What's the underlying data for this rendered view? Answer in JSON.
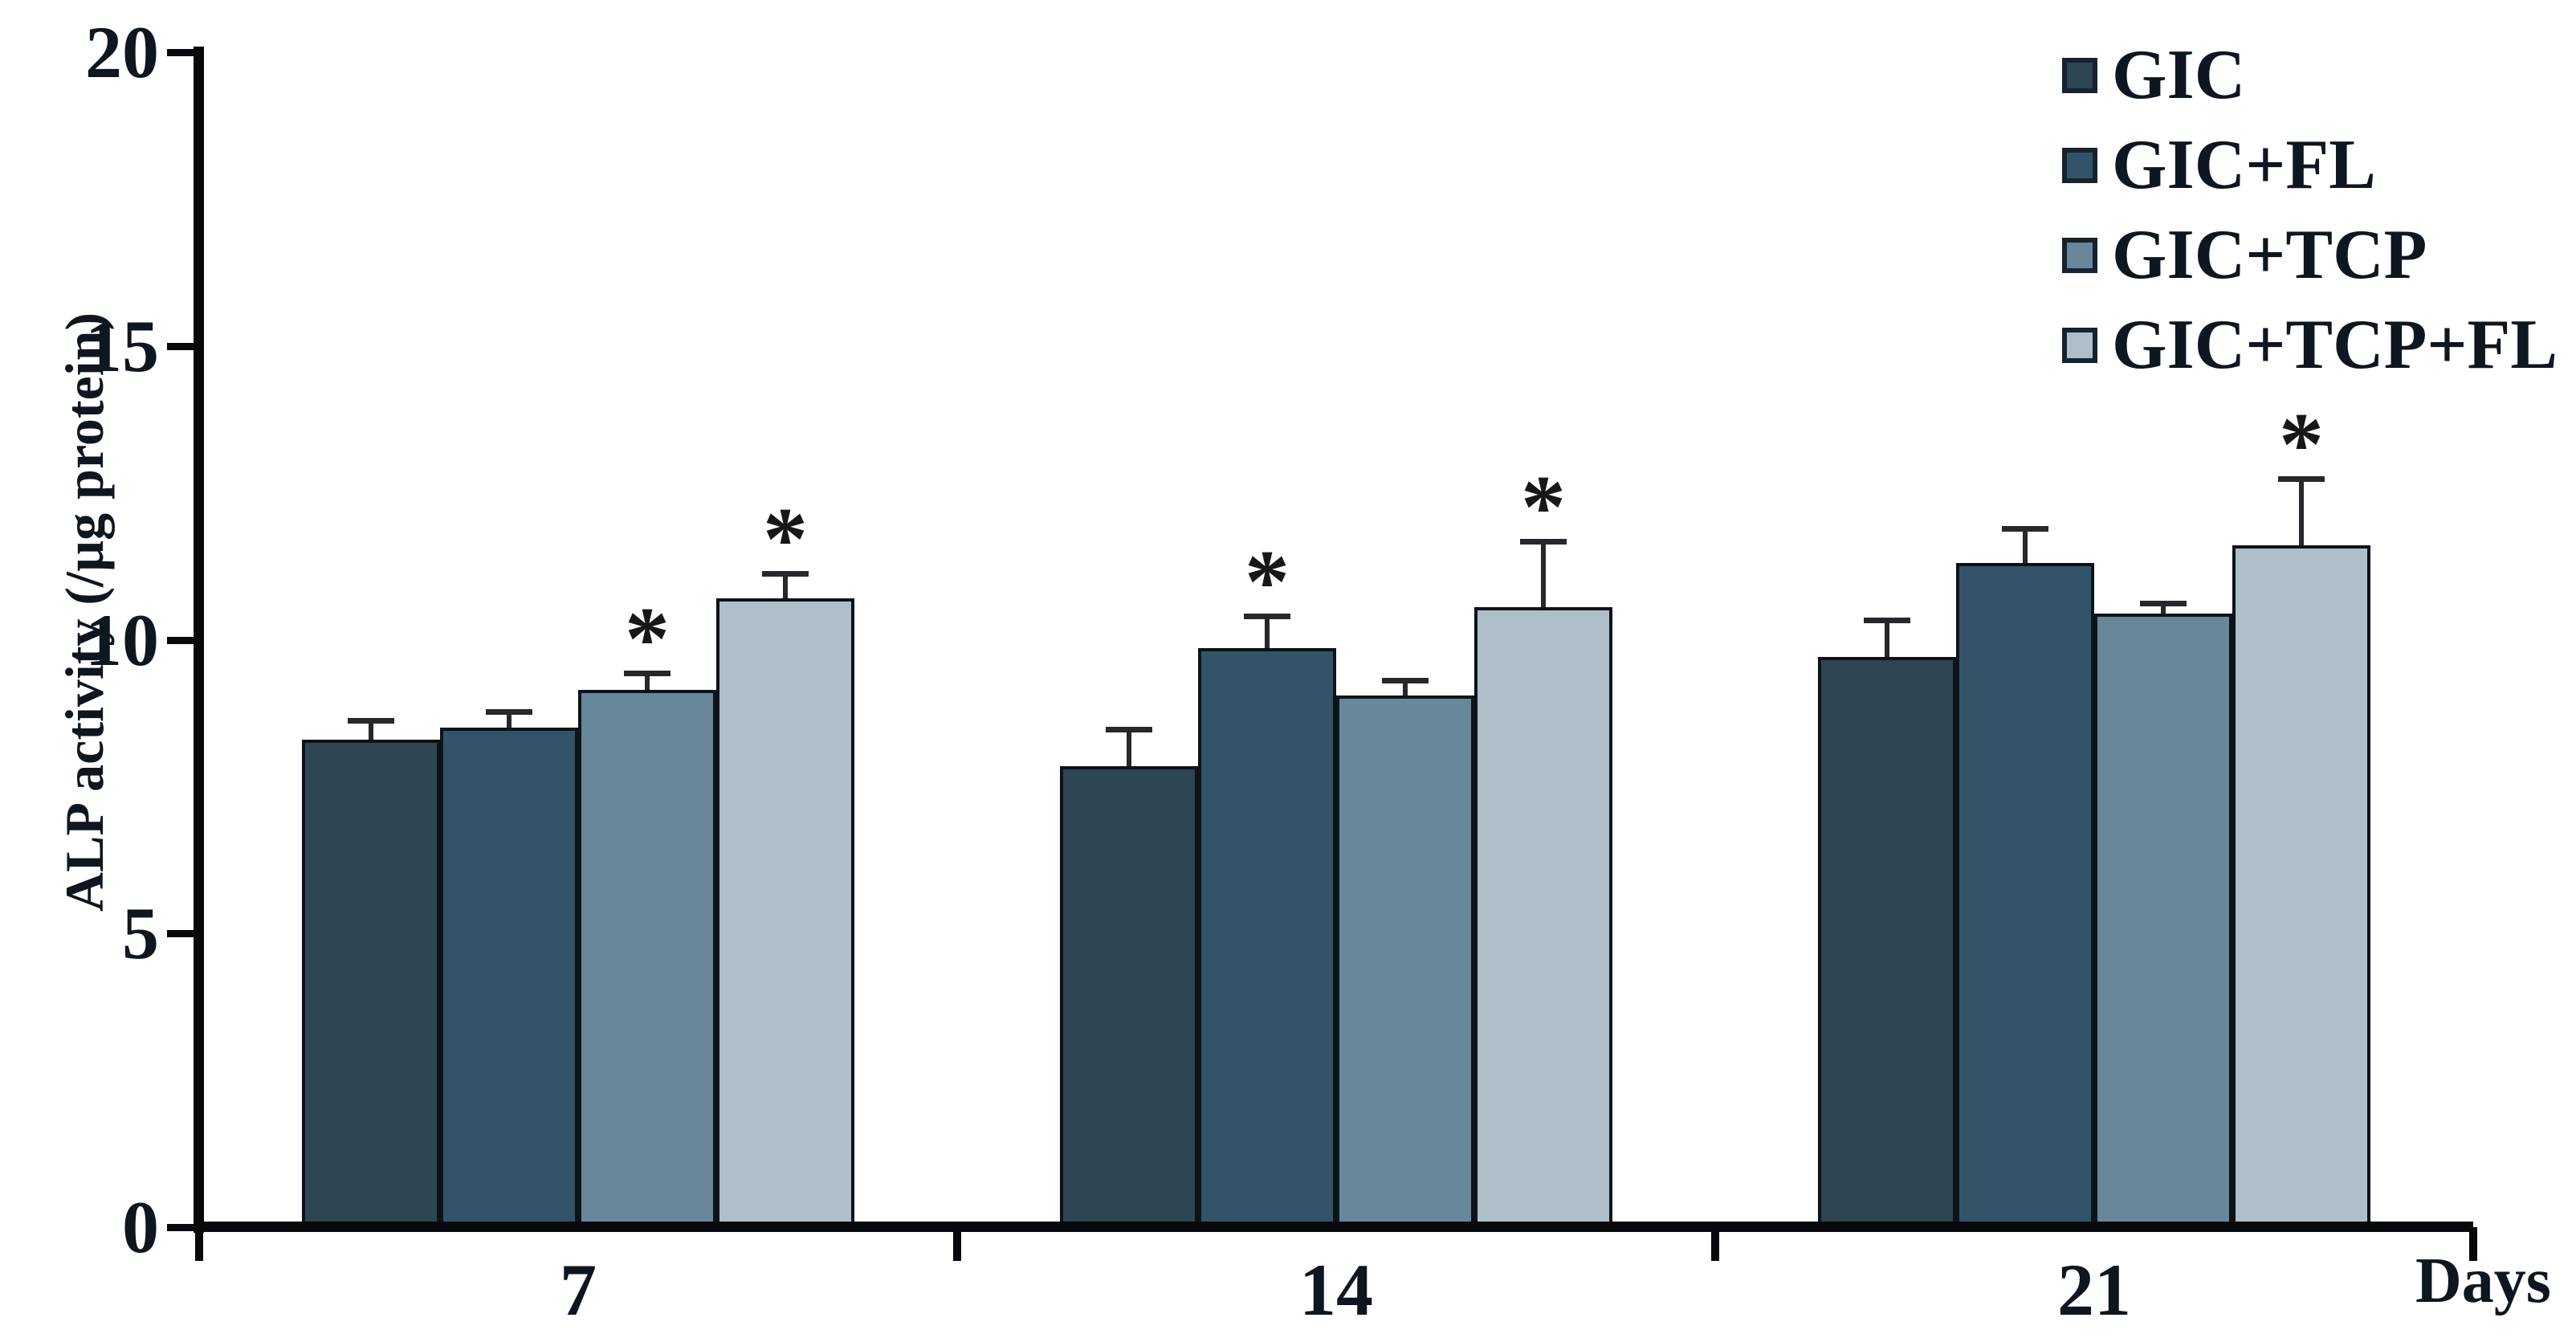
{
  "figure": {
    "background": "#ffffff",
    "text_color": "#0e1620",
    "axis_color": "#07090c"
  },
  "chart_data": {
    "type": "bar",
    "title": "",
    "ylabel": "ALP activity (/µg protein)",
    "xlabel": "Days",
    "ylim": [
      0,
      20
    ],
    "yticks": [
      0,
      5,
      10,
      15,
      20
    ],
    "categories": [
      "7",
      "14",
      "21"
    ],
    "grid": false,
    "legend_position": "top-right",
    "error_bars": "upper-only",
    "significance_marker": "*",
    "series": [
      {
        "name": "GIC",
        "color": "#2e4552",
        "values": [
          8.3,
          7.85,
          9.7
        ],
        "errors": [
          0.33,
          0.62,
          0.64
        ],
        "significant": [
          false,
          false,
          false
        ]
      },
      {
        "name": "GIC+FL",
        "color": "#335468",
        "values": [
          8.5,
          9.85,
          11.3
        ],
        "errors": [
          0.27,
          0.56,
          0.6
        ],
        "significant": [
          false,
          true,
          false
        ]
      },
      {
        "name": "GIC+TCP",
        "color": "#68879b",
        "values": [
          9.15,
          9.05,
          10.45
        ],
        "errors": [
          0.28,
          0.26,
          0.17
        ],
        "significant": [
          true,
          false,
          false
        ]
      },
      {
        "name": "GIC+TCP+FL",
        "color": "#aebfca",
        "values": [
          10.7,
          10.55,
          11.6
        ],
        "errors": [
          0.43,
          1.12,
          1.14
        ],
        "significant": [
          true,
          true,
          true
        ]
      }
    ]
  }
}
